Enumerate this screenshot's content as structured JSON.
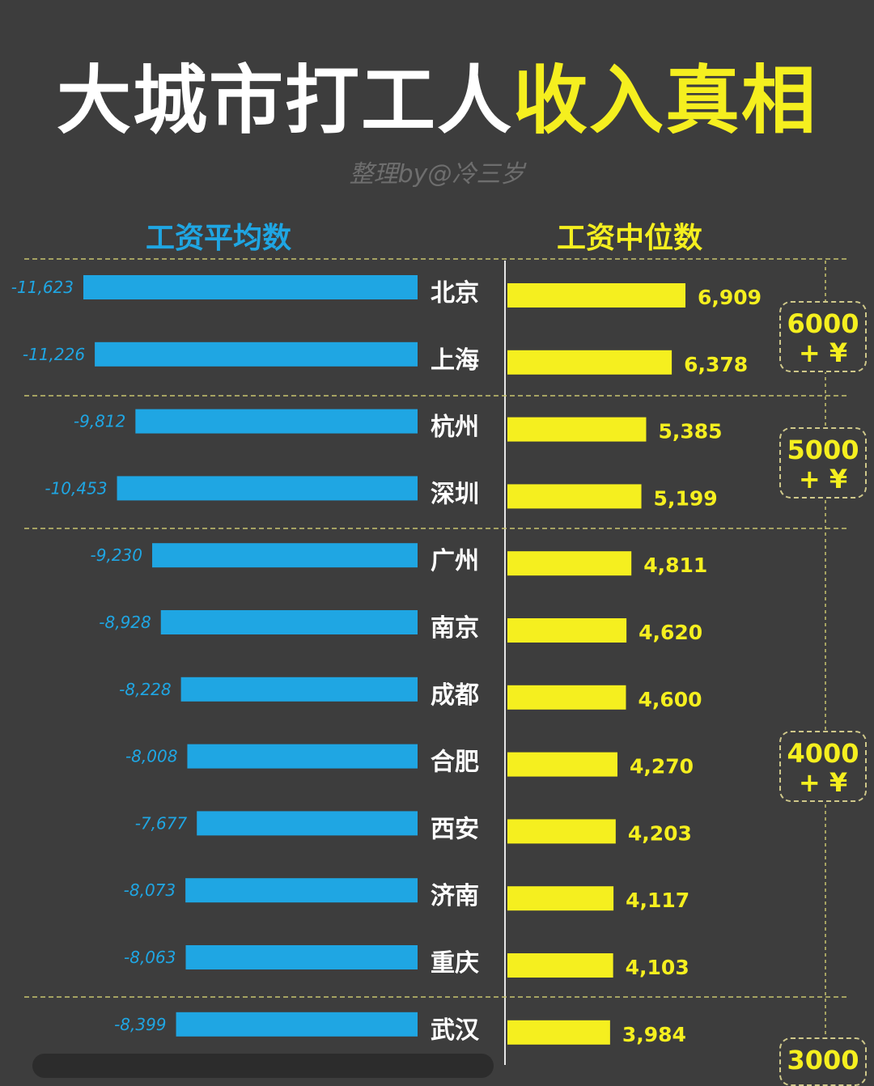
{
  "title": {
    "part1": "大城市打工人",
    "part2": "收入真相"
  },
  "subtitle": "整理by@冷三岁",
  "headers": {
    "mean": "工资平均数",
    "median": "工资中位数"
  },
  "tiers": [
    {
      "amount": "6000",
      "suffix": "+ ¥"
    },
    {
      "amount": "5000",
      "suffix": "+ ¥"
    },
    {
      "amount": "4000",
      "suffix": "+ ¥"
    },
    {
      "amount": "3000",
      "suffix": ""
    }
  ],
  "chart_data": {
    "type": "bar",
    "title": "大城市打工人收入真相",
    "categories": [
      "北京",
      "上海",
      "杭州",
      "深圳",
      "广州",
      "南京",
      "成都",
      "合肥",
      "西安",
      "济南",
      "重庆",
      "武汉"
    ],
    "series": [
      {
        "name": "工资平均数",
        "values": [
          11623,
          11226,
          9812,
          10453,
          9230,
          8928,
          8228,
          8008,
          7677,
          8073,
          8063,
          8399
        ],
        "labels": [
          "-11,623",
          "-11,226",
          "-9,812",
          "-10,453",
          "-9,230",
          "-8,928",
          "-8,228",
          "-8,008",
          "-7,677",
          "-8,073",
          "-8,063",
          "-8,399"
        ],
        "color": "#1fa6e3"
      },
      {
        "name": "工资中位数",
        "values": [
          6909,
          6378,
          5385,
          5199,
          4811,
          4620,
          4600,
          4270,
          4203,
          4117,
          4103,
          3984
        ],
        "labels": [
          "6,909",
          "6,378",
          "5,385",
          "5,199",
          "4,811",
          "4,620",
          "4,600",
          "4,270",
          "4,203",
          "4,117",
          "4,103",
          "3,984"
        ],
        "color": "#f5ef1f"
      }
    ],
    "colors": {
      "background": "#3d3d3d",
      "mean": "#1fa6e3",
      "median": "#f5ef1f",
      "divider": "#c8c36e"
    }
  }
}
